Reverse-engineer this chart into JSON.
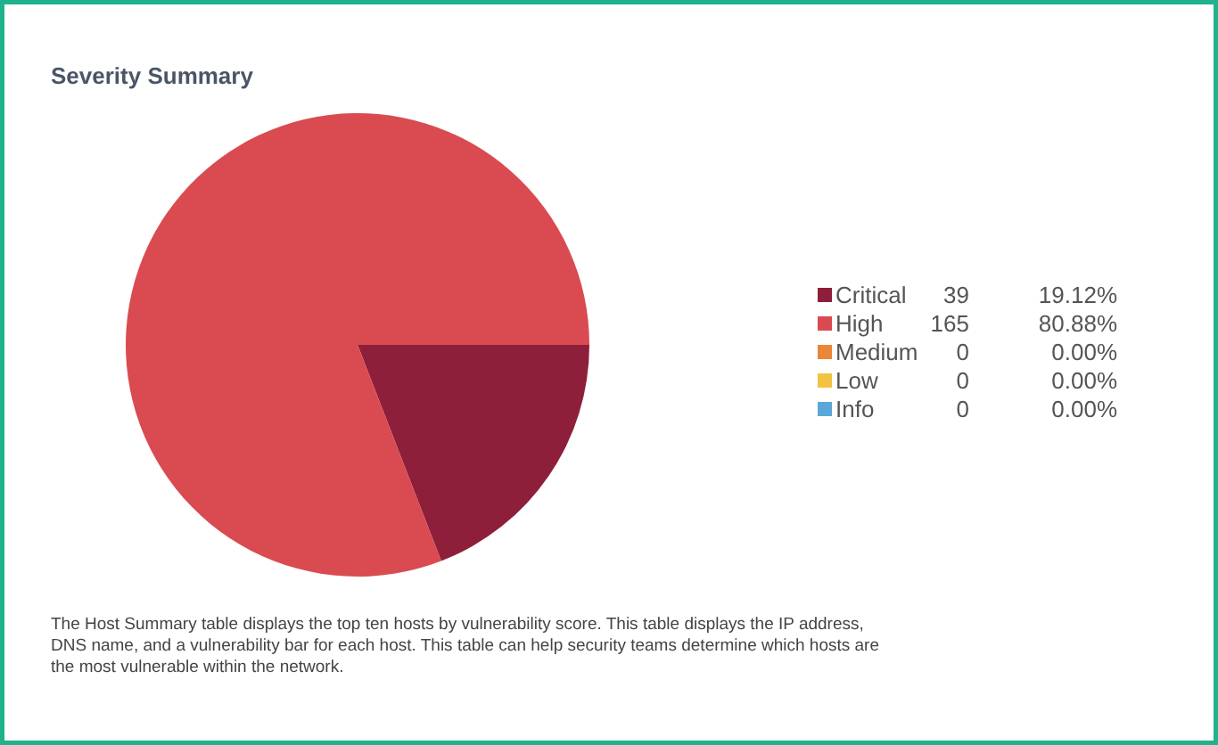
{
  "chart_data": {
    "type": "pie",
    "title": "Severity Summary",
    "categories": [
      "Critical",
      "High",
      "Medium",
      "Low",
      "Info"
    ],
    "values": [
      19.12,
      80.88,
      0,
      0,
      0
    ],
    "colors": [
      "#8e1f3b",
      "#d94b50",
      "#e8873a",
      "#f1c340",
      "#5ba7d9"
    ],
    "value_labels": [
      "39 19.12%",
      "165 80.88%",
      "0 0.00%",
      "0 0.00%",
      "0 0.00%"
    ],
    "legend": "right",
    "annotations": [
      "The Host Summary table displays the top ten hosts by vulnerability score. This table displays the IP address, DNS name, and a vulnerability bar for each host. This table can help security teams determine which hosts are the most vulnerable within the network."
    ]
  }
}
